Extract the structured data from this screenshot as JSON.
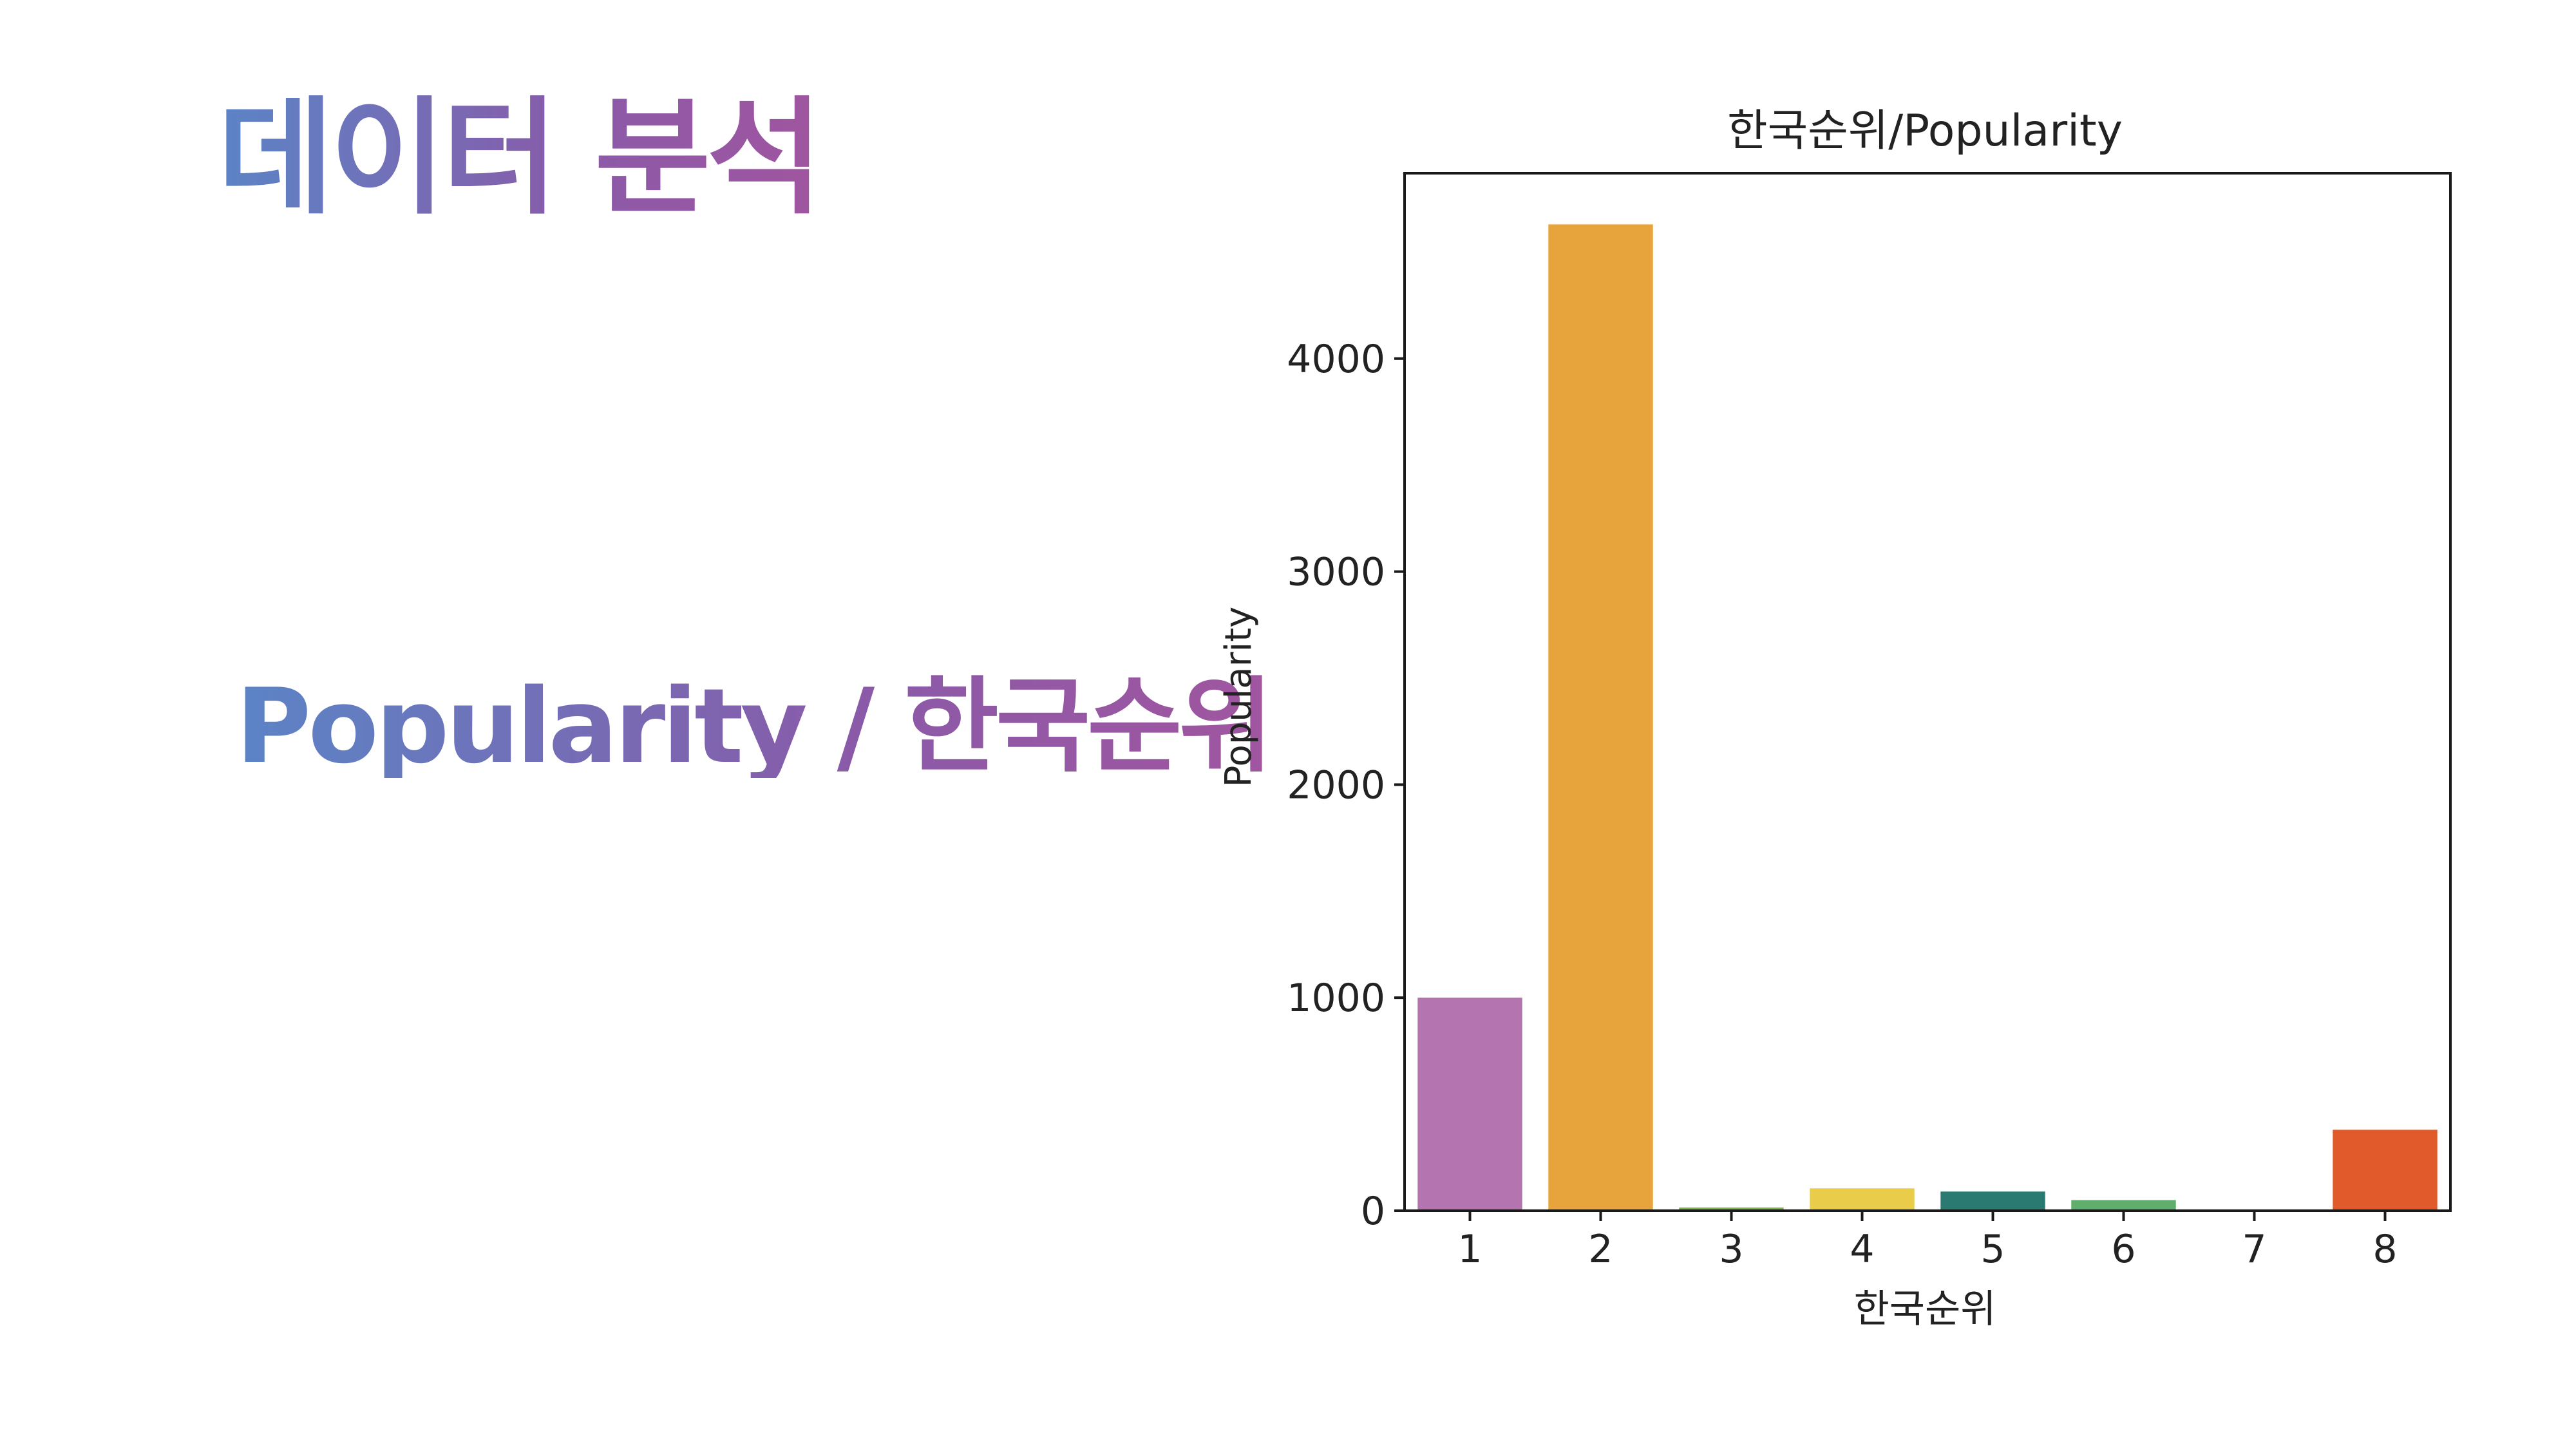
{
  "slide": {
    "title": "데이터 분석",
    "subtitle": "Popularity / 한국순위"
  },
  "chart_data": {
    "type": "bar",
    "title": "한국순위/Popularity",
    "xlabel": "한국순위",
    "ylabel": "Popularity",
    "categories": [
      "1",
      "2",
      "3",
      "4",
      "5",
      "6",
      "7",
      "8"
    ],
    "values": [
      1000,
      4630,
      15,
      105,
      90,
      50,
      0,
      380
    ],
    "colors": [
      "#b474b0",
      "#e8a43c",
      "#7ab648",
      "#e9cc4a",
      "#2a7a72",
      "#5fae6c",
      "#9e9e9e",
      "#e05a2c"
    ],
    "ylim": [
      0,
      4870
    ],
    "yticks": [
      0,
      1000,
      2000,
      3000,
      4000
    ],
    "grid": false,
    "legend": "none"
  }
}
